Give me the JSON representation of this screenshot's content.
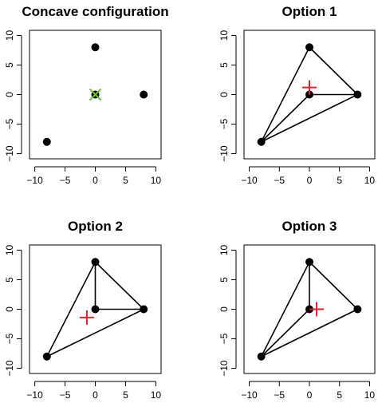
{
  "chart_data": [
    {
      "type": "scatter",
      "title": "Concave configuration",
      "xlim": [
        -10,
        10
      ],
      "ylim": [
        -10,
        10
      ],
      "x_ticks": [
        -10,
        -5,
        0,
        5,
        10
      ],
      "y_ticks": [
        -10,
        -5,
        0,
        5,
        10
      ],
      "x_tick_labels": [
        "−10",
        "−5",
        "0",
        "5",
        "10"
      ],
      "y_tick_labels": [
        "−10",
        "−5",
        "0",
        "5",
        "10"
      ],
      "points": [
        {
          "x": 0,
          "y": 8
        },
        {
          "x": 8,
          "y": 0
        },
        {
          "x": 0,
          "y": 0
        },
        {
          "x": -8,
          "y": -8
        }
      ],
      "triangle": null,
      "marker": {
        "x": 0,
        "y": 0,
        "shape": "x",
        "color": "#6bbf2a"
      },
      "marker_color": "#000000"
    },
    {
      "type": "scatter",
      "title": "Option 1",
      "xlim": [
        -10,
        10
      ],
      "ylim": [
        -10,
        10
      ],
      "x_ticks": [
        -10,
        -5,
        0,
        5,
        10
      ],
      "y_ticks": [
        -10,
        -5,
        0,
        5,
        10
      ],
      "x_tick_labels": [
        "−10",
        "−5",
        "0",
        "5",
        "10"
      ],
      "y_tick_labels": [
        "−10",
        "−5",
        "0",
        "5",
        "10"
      ],
      "points": [
        {
          "x": 0,
          "y": 8
        },
        {
          "x": 8,
          "y": 0
        },
        {
          "x": 0,
          "y": 0
        },
        {
          "x": -8,
          "y": -8
        }
      ],
      "triangle": [
        {
          "x": 0,
          "y": 8
        },
        {
          "x": 8,
          "y": 0
        },
        {
          "x": -8,
          "y": -8
        }
      ],
      "segment": [
        {
          "x": -8,
          "y": -8
        },
        {
          "x": 0,
          "y": 0
        },
        {
          "x": 8,
          "y": 0
        }
      ],
      "marker": {
        "x": 0,
        "y": 1.2,
        "shape": "+",
        "color": "#e0202a"
      },
      "marker_color": "#000000"
    },
    {
      "type": "scatter",
      "title": "Option 2",
      "xlim": [
        -10,
        10
      ],
      "ylim": [
        -10,
        10
      ],
      "x_ticks": [
        -10,
        -5,
        0,
        5,
        10
      ],
      "y_ticks": [
        -10,
        -5,
        0,
        5,
        10
      ],
      "x_tick_labels": [
        "−10",
        "−5",
        "0",
        "5",
        "10"
      ],
      "y_tick_labels": [
        "−10",
        "−5",
        "0",
        "5",
        "10"
      ],
      "points": [
        {
          "x": 0,
          "y": 8
        },
        {
          "x": 8,
          "y": 0
        },
        {
          "x": 0,
          "y": 0
        },
        {
          "x": -8,
          "y": -8
        }
      ],
      "triangle": [
        {
          "x": 0,
          "y": 8
        },
        {
          "x": -8,
          "y": -8
        },
        {
          "x": 8,
          "y": 0
        }
      ],
      "segment": [
        {
          "x": 0,
          "y": 8
        },
        {
          "x": 0,
          "y": 0
        },
        {
          "x": 8,
          "y": 0
        }
      ],
      "marker": {
        "x": -1.4,
        "y": -1.4,
        "shape": "+",
        "color": "#e0202a"
      },
      "marker_color": "#000000"
    },
    {
      "type": "scatter",
      "title": "Option 3",
      "xlim": [
        -10,
        10
      ],
      "ylim": [
        -10,
        10
      ],
      "x_ticks": [
        -10,
        -5,
        0,
        5,
        10
      ],
      "y_ticks": [
        -10,
        -5,
        0,
        5,
        10
      ],
      "x_tick_labels": [
        "−10",
        "−5",
        "0",
        "5",
        "10"
      ],
      "y_tick_labels": [
        "−10",
        "−5",
        "0",
        "5",
        "10"
      ],
      "points": [
        {
          "x": 0,
          "y": 8
        },
        {
          "x": 8,
          "y": 0
        },
        {
          "x": 0,
          "y": 0
        },
        {
          "x": -8,
          "y": -8
        }
      ],
      "triangle": [
        {
          "x": 0,
          "y": 8
        },
        {
          "x": 8,
          "y": 0
        },
        {
          "x": -8,
          "y": -8
        }
      ],
      "segment": [
        {
          "x": 0,
          "y": 8
        },
        {
          "x": 0,
          "y": 0
        },
        {
          "x": -8,
          "y": -8
        }
      ],
      "marker": {
        "x": 1.2,
        "y": 0,
        "shape": "+",
        "color": "#e0202a"
      },
      "marker_color": "#000000"
    }
  ]
}
